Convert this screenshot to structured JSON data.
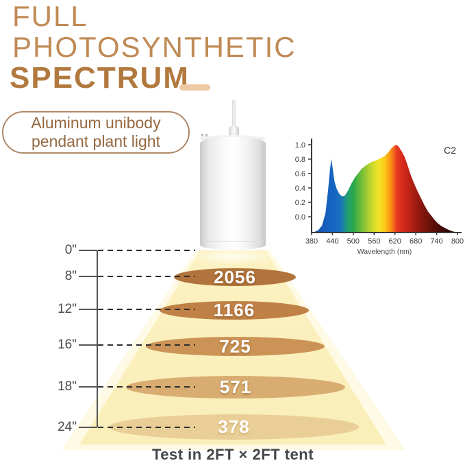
{
  "title": {
    "line1": "FULL",
    "line2": "PHOTOSYNTHETIC",
    "line3": "SPECTRUM"
  },
  "badge": {
    "line1": "Aluminum unibody",
    "line2": "pendant plant light"
  },
  "ruler": {
    "marks": [
      "0\"",
      "8\"",
      "12\"",
      "16\"",
      "18\"",
      "24\""
    ]
  },
  "readings": [
    {
      "distance": "8\"",
      "value": "2056"
    },
    {
      "distance": "12\"",
      "value": "1166"
    },
    {
      "distance": "16\"",
      "value": "725"
    },
    {
      "distance": "18\"",
      "value": "571"
    },
    {
      "distance": "24\"",
      "value": "378"
    }
  ],
  "caption": "Test in 2FT × 2FT tent",
  "colors": {
    "title_light": "#c08a55",
    "title_bold": "#b2793f",
    "title_dash": "#ecc9a2",
    "badge_border": "#ae8766",
    "badge_text": "#936741",
    "cone_fill": "#fcf2c2",
    "ellipse_fills": [
      "#b0743c",
      "#c08147",
      "#cb9456",
      "#d9ad72",
      "#e9cf97"
    ],
    "value_text": "#ffffff",
    "ruler_text": "#4a4a4a",
    "caption_text": "#43464a"
  },
  "chart_data": {
    "type": "area",
    "title": "C2",
    "xlabel": "Wavelength (nm)",
    "ylabel": "",
    "xlim": [
      380,
      800
    ],
    "ylim": [
      0,
      1.0
    ],
    "grid": false,
    "legend": "none",
    "x_ticks": [
      380,
      440,
      500,
      560,
      620,
      680,
      740,
      800
    ],
    "y_ticks": [
      "1.0",
      "0.8",
      "0.6",
      "0.4",
      "0.2",
      "0.0"
    ],
    "x": [
      380,
      390,
      400,
      410,
      420,
      428,
      433,
      437,
      441,
      446,
      452,
      460,
      468,
      476,
      485,
      495,
      505,
      515,
      525,
      535,
      550,
      565,
      580,
      590,
      600,
      610,
      618,
      625,
      632,
      640,
      648,
      656,
      665,
      675,
      685,
      695,
      705,
      715,
      725,
      735,
      745,
      755,
      765,
      775,
      785,
      795,
      800
    ],
    "y": [
      0,
      0.01,
      0.03,
      0.08,
      0.22,
      0.5,
      0.72,
      0.84,
      0.72,
      0.58,
      0.5,
      0.44,
      0.41,
      0.42,
      0.48,
      0.56,
      0.63,
      0.68,
      0.73,
      0.76,
      0.8,
      0.82,
      0.85,
      0.87,
      0.91,
      0.96,
      0.99,
      1.0,
      0.97,
      0.92,
      0.86,
      0.77,
      0.66,
      0.56,
      0.47,
      0.39,
      0.31,
      0.24,
      0.19,
      0.14,
      0.1,
      0.07,
      0.05,
      0.03,
      0.015,
      0.005,
      0
    ],
    "spectrum_colors": [
      [
        380,
        "#1b4fa0"
      ],
      [
        425,
        "#1660bd"
      ],
      [
        445,
        "#1565c4"
      ],
      [
        465,
        "#1a74b8"
      ],
      [
        483,
        "#1f9e72"
      ],
      [
        500,
        "#2aa84d"
      ],
      [
        520,
        "#66b93c"
      ],
      [
        540,
        "#a3cb32"
      ],
      [
        560,
        "#d8dd2b"
      ],
      [
        575,
        "#f2e226"
      ],
      [
        590,
        "#fcca18"
      ],
      [
        605,
        "#fa9a12"
      ],
      [
        615,
        "#f36f1d"
      ],
      [
        625,
        "#e83b22"
      ],
      [
        640,
        "#d92b1d"
      ],
      [
        660,
        "#bd2316"
      ],
      [
        680,
        "#a01c10"
      ],
      [
        700,
        "#84150c"
      ],
      [
        730,
        "#5c0f08"
      ],
      [
        760,
        "#3b0a05"
      ],
      [
        800,
        "#1d0402"
      ]
    ]
  }
}
